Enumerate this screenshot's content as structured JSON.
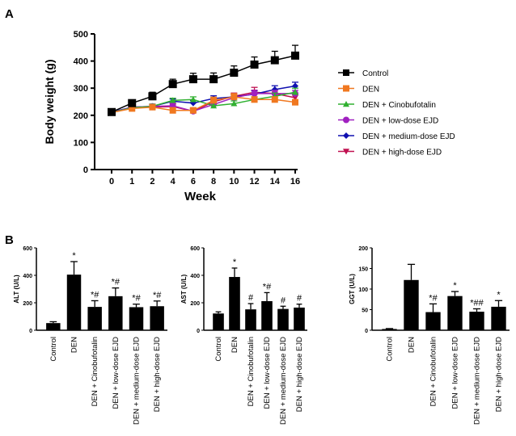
{
  "panel_labels": [
    "A",
    "B"
  ],
  "chart_data": [
    {
      "type": "line",
      "panel": "A",
      "xlabel": "Week",
      "ylabel": "Body weight (g)",
      "ylim": [
        0,
        500
      ],
      "yticks": [
        0,
        100,
        200,
        300,
        400,
        500
      ],
      "x": [
        "0",
        "1",
        "2",
        "4",
        "6",
        "8",
        "10",
        "12",
        "14",
        "16"
      ],
      "legend_placement": "right",
      "series": [
        {
          "name": "Control",
          "color": "#000000",
          "marker": "square",
          "values": [
            212,
            245,
            270,
            315,
            333,
            333,
            357,
            387,
            403,
            420
          ],
          "errors": [
            8,
            10,
            15,
            18,
            22,
            23,
            25,
            28,
            33,
            38
          ]
        },
        {
          "name": "DEN",
          "color": "#f07820",
          "marker": "square",
          "values": [
            210,
            225,
            230,
            218,
            218,
            255,
            268,
            258,
            258,
            248
          ],
          "errors": [
            5,
            6,
            8,
            10,
            10,
            12,
            12,
            10,
            10,
            10
          ]
        },
        {
          "name": "DEN + Cinobufotalin",
          "color": "#30b030",
          "marker": "triangle",
          "values": [
            210,
            228,
            233,
            255,
            258,
            235,
            243,
            258,
            270,
            285
          ],
          "errors": [
            5,
            6,
            8,
            8,
            10,
            10,
            10,
            10,
            12,
            15
          ]
        },
        {
          "name": "DEN + low-dose EJD",
          "color": "#a020c0",
          "marker": "circle",
          "values": [
            210,
            230,
            233,
            235,
            215,
            240,
            265,
            280,
            280,
            280
          ],
          "errors": [
            5,
            6,
            8,
            10,
            10,
            12,
            12,
            12,
            12,
            12
          ]
        },
        {
          "name": "DEN + medium-dose EJD",
          "color": "#1010b0",
          "marker": "diamond",
          "values": [
            212,
            230,
            233,
            252,
            245,
            262,
            268,
            278,
            295,
            308
          ],
          "errors": [
            5,
            6,
            8,
            8,
            10,
            10,
            10,
            12,
            14,
            14
          ]
        },
        {
          "name": "DEN + high-dose EJD",
          "color": "#c01050",
          "marker": "triangle-down",
          "values": [
            210,
            228,
            230,
            232,
            215,
            250,
            270,
            285,
            280,
            265
          ],
          "errors": [
            5,
            6,
            8,
            10,
            10,
            10,
            12,
            18,
            12,
            12
          ]
        }
      ]
    },
    {
      "type": "bar",
      "panel": "B",
      "ylabel": "ALT (U/L)",
      "ylim": [
        0,
        600
      ],
      "yticks": [
        0,
        200,
        400,
        600
      ],
      "categories": [
        "Control",
        "DEN",
        "DEN + Cinobufotalin",
        "DEN + low-dose EJD",
        "DEN + medium-dose EJD",
        "DEN + high-dose EJD"
      ],
      "values": [
        52,
        405,
        170,
        248,
        168,
        175
      ],
      "errors": [
        10,
        95,
        45,
        60,
        22,
        38
      ],
      "annotations": [
        "",
        "*",
        "*#",
        "*#",
        "*#",
        "*#"
      ]
    },
    {
      "type": "bar",
      "panel": "B",
      "ylabel": "AST (U/L)",
      "ylim": [
        0,
        600
      ],
      "yticks": [
        0,
        200,
        400,
        600
      ],
      "categories": [
        "Control",
        "DEN",
        "DEN + Cinobufotalin",
        "DEN + low-dose EJD",
        "DEN + medium-dose EJD",
        "DEN + high-dose EJD"
      ],
      "values": [
        122,
        388,
        152,
        212,
        155,
        165
      ],
      "errors": [
        12,
        65,
        42,
        62,
        20,
        25
      ],
      "annotations": [
        "",
        "*",
        "#",
        "*#",
        "#",
        "#"
      ]
    },
    {
      "type": "bar",
      "panel": "B",
      "ylabel": "GGT (U/L)",
      "ylim": [
        0,
        200
      ],
      "yticks": [
        0,
        50,
        100,
        150,
        200
      ],
      "categories": [
        "Control",
        "DEN",
        "DEN + Cinobufotalin",
        "DEN + low-dose EJD",
        "DEN + medium-dose EJD",
        "DEN + high-dose EJD"
      ],
      "values": [
        3,
        122,
        44,
        83,
        45,
        57
      ],
      "errors": [
        1,
        38,
        20,
        11,
        7,
        15
      ],
      "annotations": [
        "",
        "",
        "*#",
        "*",
        "*##",
        "*"
      ]
    }
  ]
}
